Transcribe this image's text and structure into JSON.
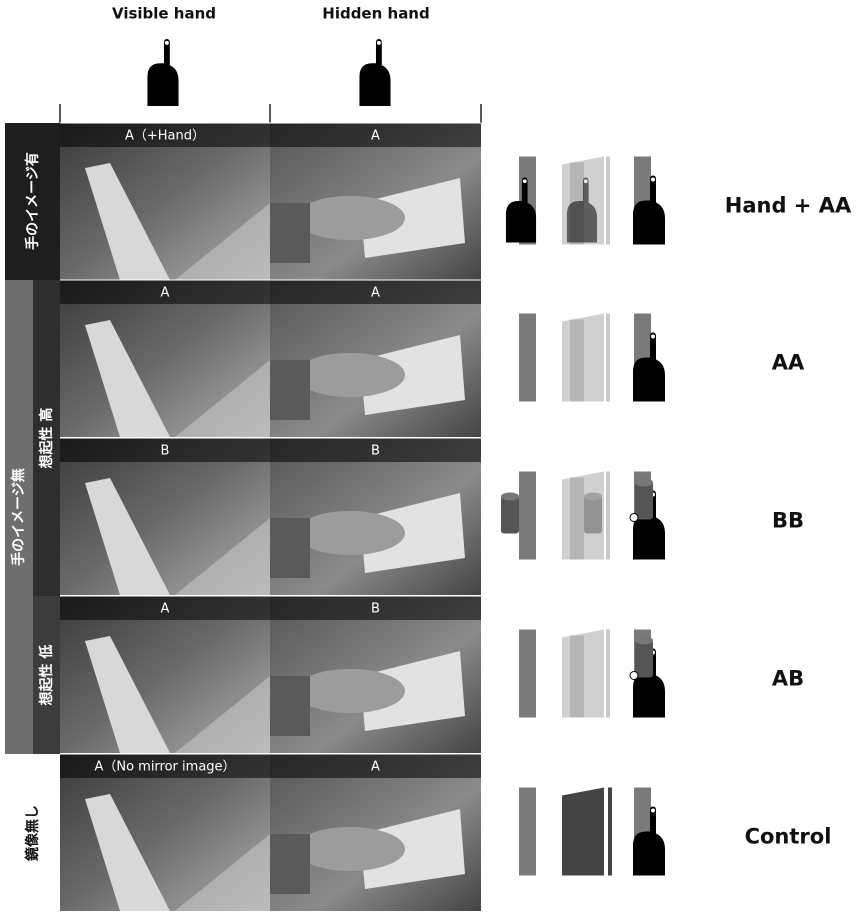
{
  "header": {
    "columns": [
      "Visible hand",
      "Hidden hand"
    ]
  },
  "row_labels": {
    "with_image": "手のイメージ有",
    "without_image": "手のイメージ無",
    "high": "想起性 高",
    "low": "想起性 低",
    "no_mirror": "鏡像無し"
  },
  "rows": [
    {
      "photos": [
        "A（+Hand）",
        "A"
      ],
      "condition": "Hand + AA"
    },
    {
      "photos": [
        "A",
        "A"
      ],
      "condition": "AA"
    },
    {
      "photos": [
        "B",
        "B"
      ],
      "condition": "BB"
    },
    {
      "photos": [
        "A",
        "B"
      ],
      "condition": "AB"
    },
    {
      "photos": [
        "A（No mirror image）",
        "A"
      ],
      "condition": "Control"
    }
  ]
}
